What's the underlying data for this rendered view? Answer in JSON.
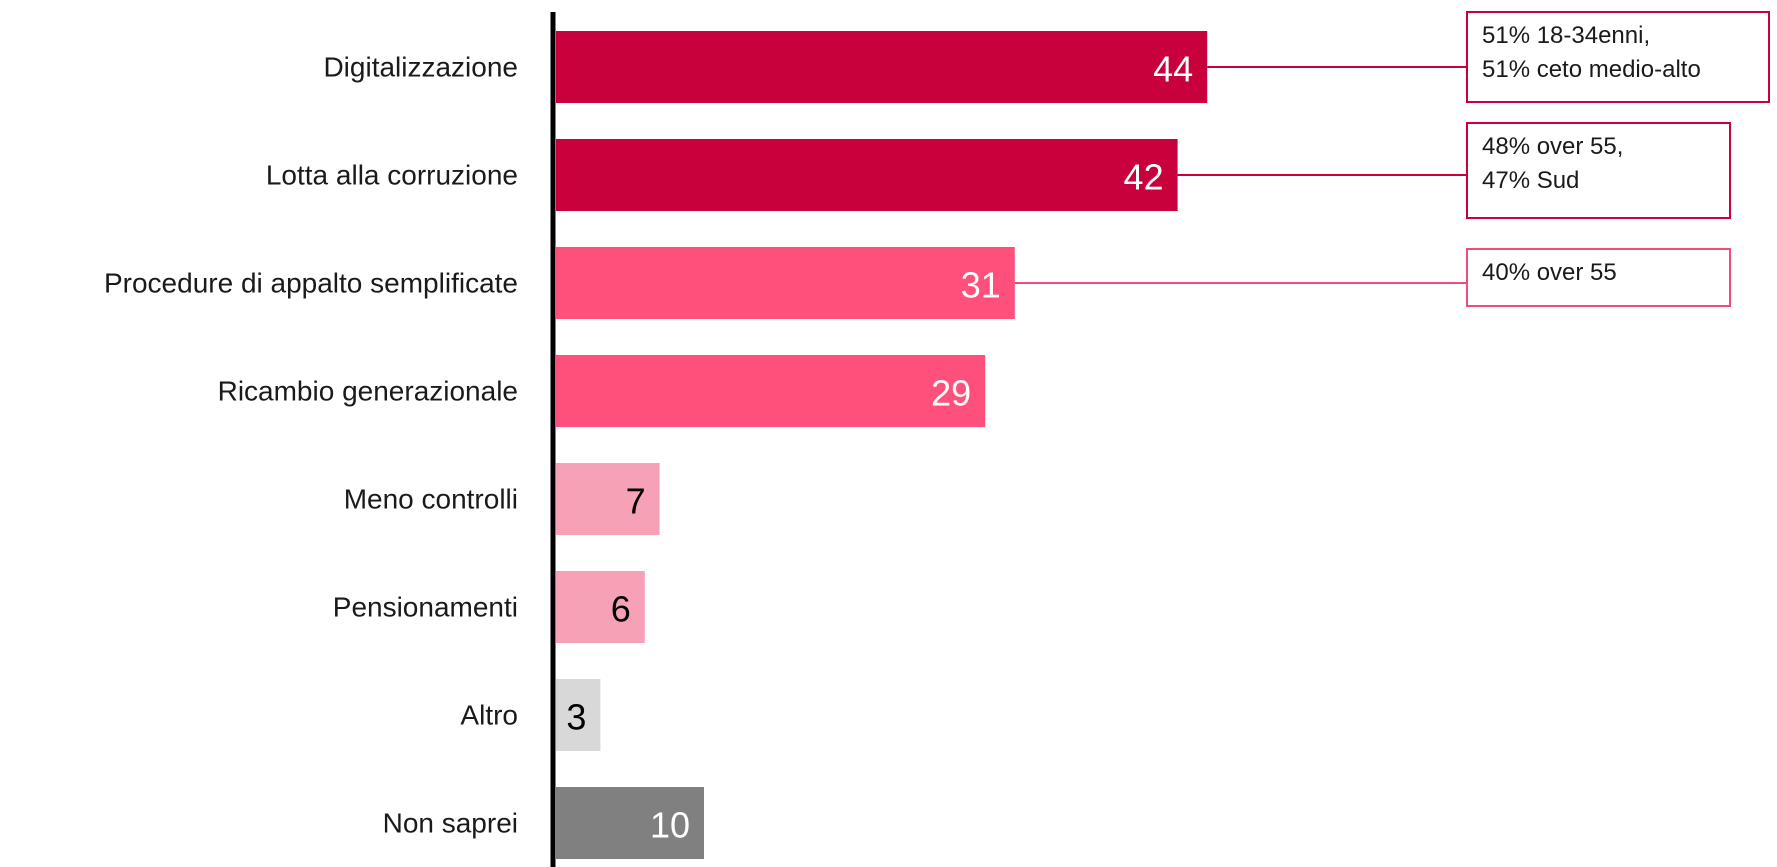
{
  "chart_data": {
    "type": "bar",
    "orientation": "horizontal",
    "categories": [
      "Digitalizzazione",
      "Lotta alla corruzione",
      "Procedure di appalto semplificate",
      "Ricambio generazionale",
      "Meno controlli",
      "Pensionamenti",
      "Altro",
      "Non saprei"
    ],
    "values": [
      44,
      42,
      31,
      29,
      7,
      6,
      3,
      10
    ],
    "colors": [
      "#c8003c",
      "#c8003c",
      "#ff4f7b",
      "#ff4f7b",
      "#f7a1b6",
      "#f7a1b6",
      "#d8d8d8",
      "#808080"
    ],
    "value_label_colors": [
      "#ffffff",
      "#ffffff",
      "#ffffff",
      "#ffffff",
      "#000000",
      "#000000",
      "#000000",
      "#ffffff"
    ],
    "title": "",
    "xlabel": "",
    "ylabel": "",
    "grid": false,
    "legend": "none"
  },
  "callouts": [
    {
      "category": "Digitalizzazione",
      "lines": [
        "51% 18-34enni,",
        "51% ceto medio-alto"
      ],
      "border_color": "#c8003c"
    },
    {
      "category": "Lotta alla corruzione",
      "lines": [
        "48% over 55,",
        "47% Sud"
      ],
      "border_color": "#c8003c"
    },
    {
      "category": "Procedure di appalto semplificate",
      "lines": [
        "40% over 55"
      ],
      "border_color": "#f04c7a"
    }
  ]
}
